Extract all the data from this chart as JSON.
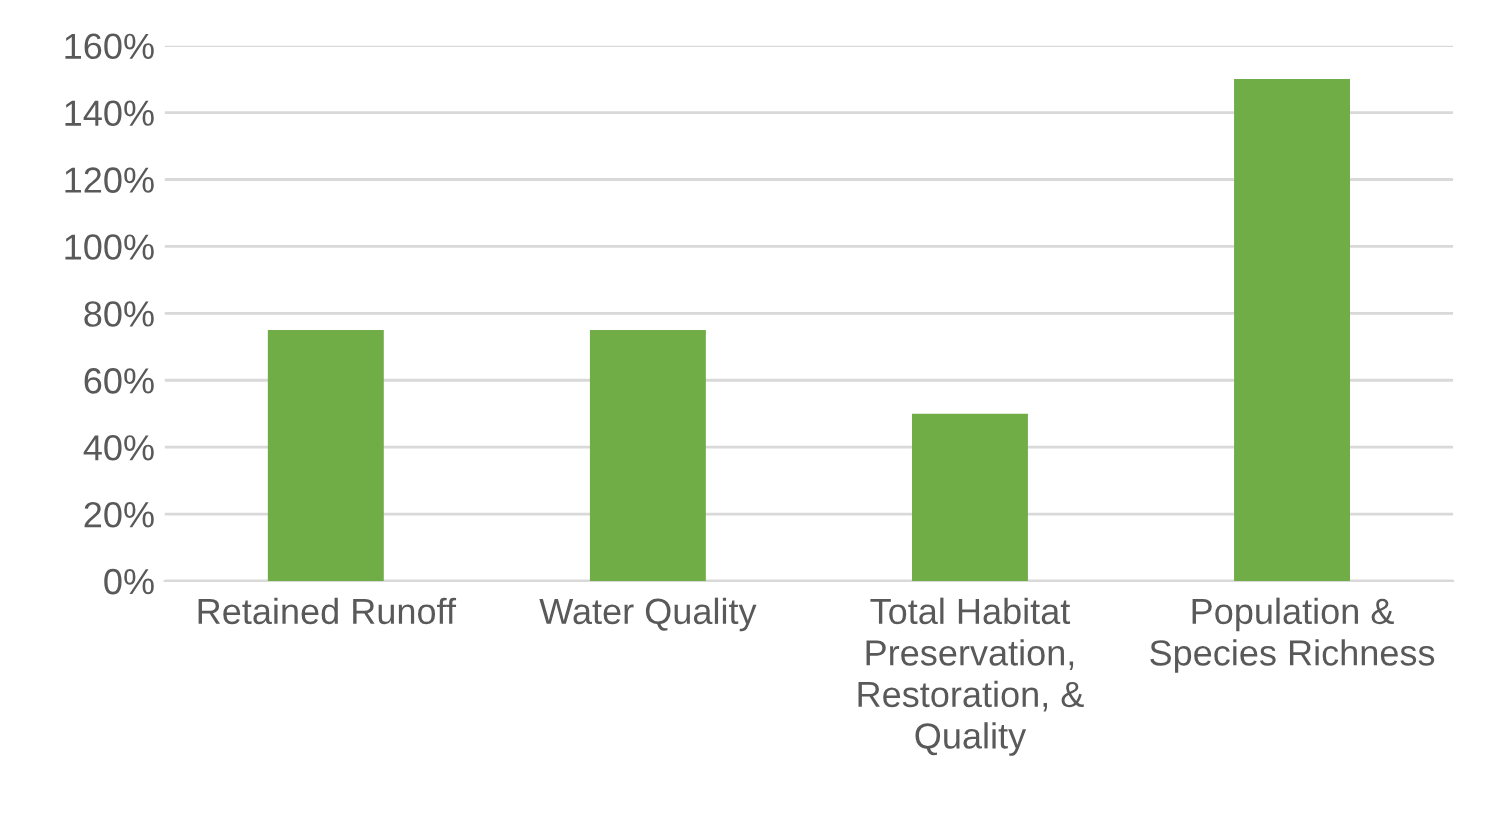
{
  "chart_data": {
    "type": "bar",
    "categories": [
      "Retained Runoff",
      "Water Quality",
      "Total Habitat\nPreservation,\nRestoration, &\nQuality",
      "Population &\nSpecies Richness"
    ],
    "values": [
      75,
      75,
      50,
      150
    ],
    "color": "#70ad47",
    "ylim": [
      0,
      160
    ],
    "yticks": [
      {
        "value": 0,
        "label": "0%"
      },
      {
        "value": 20,
        "label": "20%"
      },
      {
        "value": 40,
        "label": "40%"
      },
      {
        "value": 60,
        "label": "60%"
      },
      {
        "value": 80,
        "label": "80%"
      },
      {
        "value": 100,
        "label": "100%"
      },
      {
        "value": 120,
        "label": "120%"
      },
      {
        "value": 140,
        "label": "140%"
      },
      {
        "value": 160,
        "label": "160%"
      }
    ],
    "grid": "y",
    "legend": false
  }
}
